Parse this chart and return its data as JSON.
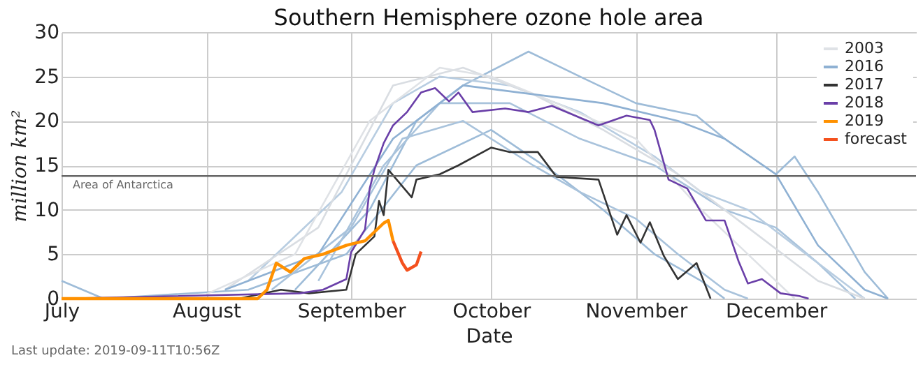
{
  "chart_data": {
    "type": "line",
    "title": "Southern Hemisphere ozone hole area",
    "xlabel": "Date",
    "ylabel": "million km²",
    "x": [
      "--07-01",
      "--07-10",
      "--08-10",
      "--08-31",
      "--09-15",
      "--10-01",
      "--10-15",
      "--10-25",
      "--11-05",
      "--11-15",
      "--11-20"
    ],
    "series": [
      {
        "color": "#9ebcd8",
        "values": [
          2,
          0,
          1,
          5,
          15,
          19,
          14,
          10,
          5,
          2,
          0
        ]
      },
      {
        "color": "#9ebcd8",
        "x": [
          "--08-20",
          "--09-05",
          "--09-15",
          "--09-25",
          "--10-09",
          "--10-20",
          "--11-01",
          "--11-14",
          "--11-20",
          "--12-01",
          "--12-05",
          "--12-10",
          "--12-20",
          "--12-25"
        ],
        "values": [
          1,
          10,
          20,
          24,
          27.8,
          25,
          22,
          20.6,
          18,
          14,
          16,
          12,
          3,
          0
        ]
      },
      {
        "color": "#a9c3dc",
        "x": [
          "--08-25",
          "--09-08",
          "--09-20",
          "--10-05",
          "--10-20",
          "--11-05",
          "--11-20",
          "--12-01",
          "--12-10",
          "--12-18"
        ],
        "values": [
          2,
          15,
          22,
          22,
          18,
          15,
          10,
          8,
          4,
          0
        ]
      },
      {
        "color": "#a9c3dc",
        "x": [
          "--08-15",
          "--09-01",
          "--09-12",
          "--09-25",
          "--10-10",
          "--10-20",
          "--11-01",
          "--11-10",
          "--11-20",
          "--11-25"
        ],
        "values": [
          1,
          8,
          18,
          20,
          15,
          12,
          9,
          5,
          1,
          0
        ]
      },
      {
        "color": "#b8cde1",
        "x": [
          "--08-10",
          "--08-30",
          "--09-10",
          "--09-20",
          "--10-05",
          "--10-20",
          "--11-05",
          "--11-15",
          "--11-25",
          "--12-05",
          "--12-15",
          "--12-20"
        ],
        "values": [
          2,
          12,
          22,
          25,
          24,
          21,
          16,
          12,
          10,
          6,
          2,
          0
        ]
      },
      {
        "color": "#d9dde2",
        "x": [
          "--08-05",
          "--08-25",
          "--09-10",
          "--09-25",
          "--10-10",
          "--10-25",
          "--11-10",
          "--11-25",
          "--12-10",
          "--12-20"
        ],
        "values": [
          1,
          8,
          24,
          26,
          23,
          19,
          14,
          8,
          2,
          0
        ]
      },
      {
        "name": "2003",
        "color": "#dfe2e6",
        "x": [
          "--08-01",
          "--08-20",
          "--09-05",
          "--09-20",
          "--10-01",
          "--10-15",
          "--11-01",
          "--11-15",
          "--11-25",
          "--12-05"
        ],
        "values": [
          0.5,
          5,
          20,
          26,
          25,
          22,
          18,
          10,
          5,
          0
        ]
      },
      {
        "name": "2016",
        "color": "#8fb1d3",
        "x": [
          "--08-05",
          "--08-25",
          "--09-10",
          "--09-25",
          "--10-10",
          "--10-25",
          "--11-10",
          "--11-20",
          "--12-01",
          "--12-10",
          "--12-20",
          "--12-25"
        ],
        "values": [
          1,
          5,
          18,
          24,
          23,
          22,
          20,
          18,
          14,
          6,
          1,
          0
        ]
      },
      {
        "name": "2017",
        "color": "#333333",
        "x": [
          "--08-05",
          "--08-08",
          "--08-17",
          "--08-23",
          "--08-31",
          "--09-02",
          "--09-06",
          "--09-07",
          "--09-08",
          "--09-09",
          "--09-14",
          "--09-15",
          "--09-20",
          "--09-24",
          "--10-01",
          "--10-05",
          "--10-11",
          "--10-15",
          "--10-24",
          "--10-28",
          "--10-30",
          "--11-02",
          "--11-04",
          "--11-07",
          "--11-10",
          "--11-14",
          "--11-17"
        ],
        "values": [
          0,
          0,
          1,
          0.6,
          1,
          5,
          7,
          11,
          9.4,
          14.5,
          11.4,
          13.4,
          14,
          15,
          17,
          16.5,
          16.5,
          13.7,
          13.4,
          7.2,
          9.4,
          6.3,
          8.6,
          4.8,
          2.2,
          4,
          0
        ]
      },
      {
        "name": "2018",
        "color": "#6a3fa8",
        "x": [
          "--07-01",
          "--08-21",
          "--08-26",
          "--08-31",
          "--09-01",
          "--09-04",
          "--09-05",
          "--09-06",
          "--09-08",
          "--09-10",
          "--09-13",
          "--09-16",
          "--09-19",
          "--09-22",
          "--09-24",
          "--09-27",
          "--10-04",
          "--10-09",
          "--10-14",
          "--10-19",
          "--10-24",
          "--10-30",
          "--11-04",
          "--11-05",
          "--11-08",
          "--11-12",
          "--11-16",
          "--11-20",
          "--11-23",
          "--11-25",
          "--11-28",
          "--12-02",
          "--12-06",
          "--12-08"
        ],
        "values": [
          0,
          0.6,
          1,
          2.2,
          5.2,
          7.8,
          12.4,
          14.5,
          17.5,
          19.5,
          21,
          23.2,
          23.7,
          22.2,
          23.2,
          21,
          21.4,
          21,
          21.7,
          20.6,
          19.5,
          20.6,
          20.1,
          19,
          13.4,
          12.4,
          8.8,
          8.8,
          4.2,
          1.7,
          2.2,
          0.6,
          0.3,
          0
        ]
      },
      {
        "name": "2019",
        "color": "#ff9100",
        "x": [
          "--07-01",
          "--08-12",
          "--08-14",
          "--08-16",
          "--08-19",
          "--08-22",
          "--08-26",
          "--08-31",
          "--09-04",
          "--09-08",
          "--09-09",
          "--09-10"
        ],
        "values": [
          0,
          0,
          1,
          4,
          3,
          4.5,
          5,
          6,
          6.5,
          8.5,
          8.8,
          6.5
        ]
      },
      {
        "name": "forecast",
        "color": "#f4511e",
        "x": [
          "--09-10",
          "--09-12",
          "--09-13",
          "--09-15",
          "--09-16"
        ],
        "values": [
          6.5,
          4,
          3.2,
          3.8,
          5.3
        ]
      }
    ],
    "ylim": [
      0,
      30
    ],
    "yticks": [
      0,
      5,
      10,
      15,
      20,
      25,
      30
    ],
    "xlim": [
      "--07-01",
      "--12-31"
    ],
    "xticks": [
      {
        "value": "--07-01",
        "label": "July"
      },
      {
        "value": "--08-01",
        "label": "August"
      },
      {
        "value": "--09-01",
        "label": "September"
      },
      {
        "value": "--10-01",
        "label": "October"
      },
      {
        "value": "--11-01",
        "label": "November"
      },
      {
        "value": "--12-01",
        "label": "December"
      }
    ],
    "ref_lines": [
      {
        "axis": "y",
        "value": 13.8,
        "label": "Area of Antarctica",
        "color": "#666666"
      }
    ],
    "annotations": [
      "Last update: 2019-09-11T10:56Z"
    ],
    "grid": true,
    "legend": "top right",
    "line_style": "solid",
    "marker": "none"
  }
}
